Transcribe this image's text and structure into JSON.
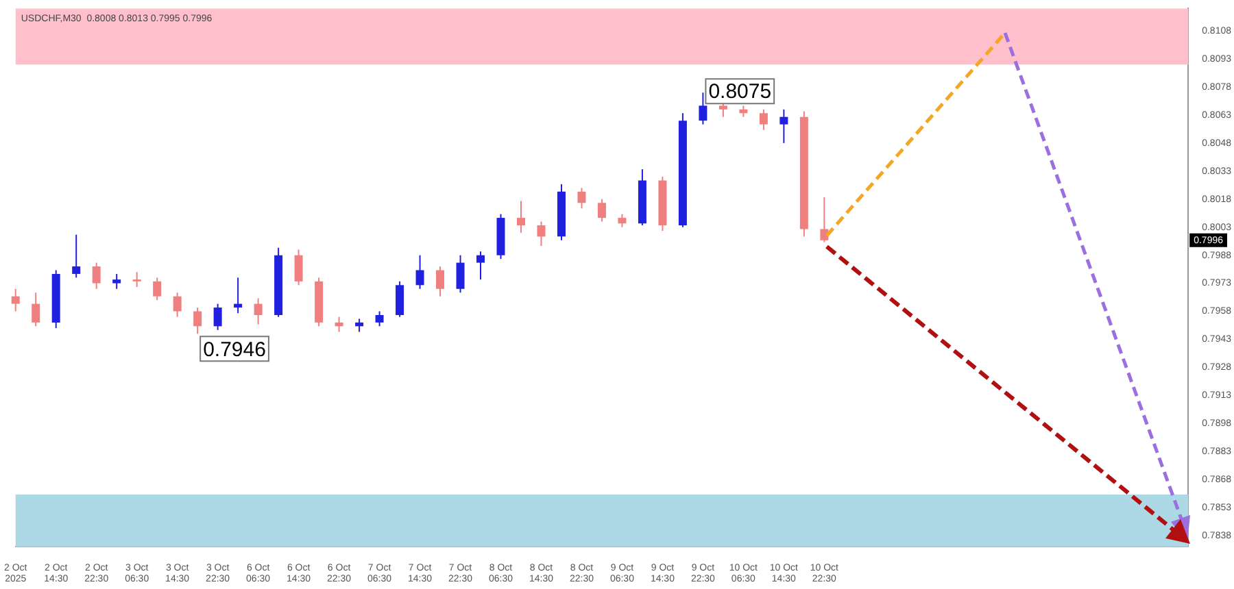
{
  "chart_data": {
    "type": "candlestick",
    "title": "USDCHF,M30  0.8008 0.8013 0.7995 0.7996",
    "categories": [
      "2 Oct 2025",
      null,
      "2 Oct 14:30",
      null,
      "2 Oct 22:30",
      null,
      "3 Oct 06:30",
      null,
      "3 Oct 14:30",
      null,
      "3 Oct 22:30",
      null,
      "6 Oct 06:30",
      null,
      "6 Oct 14:30",
      null,
      "6 Oct 22:30",
      null,
      "7 Oct 06:30",
      null,
      "7 Oct 14:30",
      null,
      "7 Oct 22:30",
      null,
      "8 Oct 06:30",
      null,
      "8 Oct 14:30",
      null,
      "8 Oct 22:30",
      null,
      "9 Oct 06:30",
      null,
      "9 Oct 14:30",
      null,
      "9 Oct 22:30",
      null,
      "10 Oct 06:30",
      null,
      "10 Oct 14:30",
      null,
      "10 Oct 22:30",
      null,
      null,
      null,
      null,
      null,
      null,
      null,
      null,
      null,
      null,
      null,
      null,
      null,
      null,
      null,
      null,
      null,
      null
    ],
    "ohlc": [
      [
        0.7966,
        0.797,
        0.7958,
        0.7962
      ],
      [
        0.7962,
        0.7968,
        0.795,
        0.7952
      ],
      [
        0.7952,
        0.798,
        0.7949,
        0.7978
      ],
      [
        0.7978,
        0.7999,
        0.7976,
        0.7982
      ],
      [
        0.7982,
        0.7984,
        0.797,
        0.7973
      ],
      [
        0.7973,
        0.7978,
        0.797,
        0.7975
      ],
      [
        0.7975,
        0.7979,
        0.7971,
        0.7974
      ],
      [
        0.7974,
        0.7976,
        0.7964,
        0.7966
      ],
      [
        0.7966,
        0.7968,
        0.7955,
        0.7958
      ],
      [
        0.7958,
        0.796,
        0.7946,
        0.795
      ],
      [
        0.795,
        0.7962,
        0.7948,
        0.796
      ],
      [
        0.796,
        0.7976,
        0.7957,
        0.7962
      ],
      [
        0.7962,
        0.7965,
        0.7951,
        0.7956
      ],
      [
        0.7956,
        0.7992,
        0.7955,
        0.7988
      ],
      [
        0.7988,
        0.7991,
        0.7972,
        0.7974
      ],
      [
        0.7974,
        0.7976,
        0.795,
        0.7952
      ],
      [
        0.7952,
        0.7955,
        0.7947,
        0.795
      ],
      [
        0.795,
        0.7954,
        0.7947,
        0.7952
      ],
      [
        0.7952,
        0.7958,
        0.795,
        0.7956
      ],
      [
        0.7956,
        0.7974,
        0.7955,
        0.7972
      ],
      [
        0.7972,
        0.7988,
        0.797,
        0.798
      ],
      [
        0.798,
        0.7982,
        0.7966,
        0.797
      ],
      [
        0.797,
        0.7988,
        0.7968,
        0.7984
      ],
      [
        0.7984,
        0.799,
        0.7975,
        0.7988
      ],
      [
        0.7988,
        0.801,
        0.7986,
        0.8008
      ],
      [
        0.8008,
        0.8017,
        0.8,
        0.8004
      ],
      [
        0.8004,
        0.8006,
        0.7993,
        0.7998
      ],
      [
        0.7998,
        0.8026,
        0.7996,
        0.8022
      ],
      [
        0.8022,
        0.8024,
        0.8013,
        0.8016
      ],
      [
        0.8016,
        0.8018,
        0.8006,
        0.8008
      ],
      [
        0.8008,
        0.801,
        0.8003,
        0.8005
      ],
      [
        0.8005,
        0.8034,
        0.8004,
        0.8028
      ],
      [
        0.8028,
        0.803,
        0.8001,
        0.8004
      ],
      [
        0.8004,
        0.8064,
        0.8003,
        0.806
      ],
      [
        0.806,
        0.8075,
        0.8058,
        0.8068
      ],
      [
        0.8068,
        0.807,
        0.8062,
        0.8066
      ],
      [
        0.8066,
        0.8068,
        0.8062,
        0.8064
      ],
      [
        0.8064,
        0.8066,
        0.8055,
        0.8058
      ],
      [
        0.8058,
        0.8066,
        0.8048,
        0.8062
      ],
      [
        0.8062,
        0.8065,
        0.7998,
        0.8002
      ],
      [
        0.8002,
        0.8019,
        0.7995,
        0.7996
      ],
      null,
      null,
      null,
      null,
      null,
      null,
      null,
      null,
      null,
      null,
      null,
      null,
      null,
      null,
      null,
      null,
      null,
      null
    ],
    "colors": [
      "#f08080",
      "#f08080",
      "#2020e0",
      "#2020e0",
      "#f08080",
      "#2020e0",
      "#f08080",
      "#f08080",
      "#f08080",
      "#f08080",
      "#2020e0",
      "#2020e0",
      "#f08080",
      "#2020e0",
      "#f08080",
      "#f08080",
      "#f08080",
      "#2020e0",
      "#2020e0",
      "#2020e0",
      "#2020e0",
      "#f08080",
      "#2020e0",
      "#2020e0",
      "#2020e0",
      "#f08080",
      "#f08080",
      "#2020e0",
      "#f08080",
      "#f08080",
      "#f08080",
      "#2020e0",
      "#f08080",
      "#2020e0",
      "#2020e0",
      "#f08080",
      "#f08080",
      "#f08080",
      "#2020e0",
      "#f08080",
      "#f08080",
      null,
      null,
      null,
      null,
      null,
      null,
      null,
      null,
      null,
      null,
      null,
      null,
      null,
      null,
      null,
      null,
      null,
      null
    ],
    "bands": [
      {
        "axis": "y",
        "from": 0.809,
        "to": 0.812,
        "color": "#ffc0cb"
      },
      {
        "axis": "y",
        "from": 0.7832,
        "to": 0.786,
        "color": "#add8e6"
      }
    ],
    "annotations": [
      "0.8075",
      "0.7946",
      "0.7996"
    ],
    "ylim": [
      0.7832,
      0.812
    ],
    "yticks": [
      0.8108,
      0.8093,
      0.8078,
      0.8063,
      0.8048,
      0.8033,
      0.8018,
      0.8003,
      0.7988,
      0.7973,
      0.7958,
      0.7943,
      0.7928,
      0.7913,
      0.7898,
      0.7883,
      0.7868,
      0.7853,
      0.7838
    ],
    "grid": false,
    "legend": false
  }
}
